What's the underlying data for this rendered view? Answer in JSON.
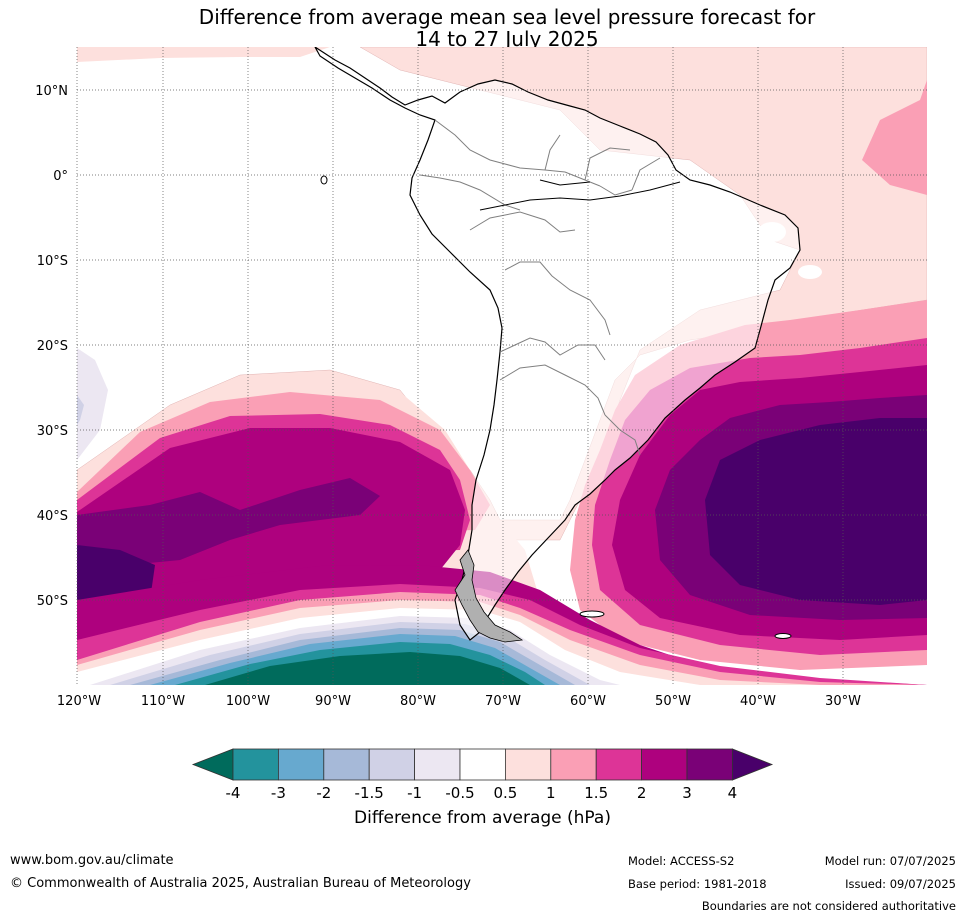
{
  "title_line1": "Difference from average mean sea level pressure forecast for",
  "title_line2": "14 to 27 July 2025",
  "lat_labels": [
    "10°N",
    "0°",
    "10°S",
    "20°S",
    "30°S",
    "40°S",
    "50°S"
  ],
  "lon_labels": [
    "120°W",
    "110°W",
    "100°W",
    "90°W",
    "80°W",
    "70°W",
    "60°W",
    "50°W",
    "40°W",
    "30°W"
  ],
  "colorbar": {
    "label": "Difference from average (hPa)",
    "tick_labels": [
      "-4",
      "-3",
      "-2",
      "-1.5",
      "-1",
      "-0.5",
      "0.5",
      "1",
      "1.5",
      "2",
      "3",
      "4"
    ],
    "colors": [
      "#006b5c",
      "#23939d",
      "#67a9cf",
      "#a6b9d8",
      "#d0d1e6",
      "#ece7f2",
      "#ffffff",
      "#fde0dd",
      "#fa9fb5",
      "#dd3497",
      "#ae017e",
      "#7a0177",
      "#49006a"
    ]
  },
  "footer": {
    "website": "www.bom.gov.au/climate",
    "copyright": "© Commonwealth of Australia 2025, Australian Bureau of Meteorology",
    "model": "Model: ACCESS-S2",
    "base_period": "Base period: 1981-2018",
    "model_run": "Model run: 07/07/2025",
    "issued": "Issued: 09/07/2025",
    "disclaimer": "Boundaries are not considered authoritative"
  }
}
